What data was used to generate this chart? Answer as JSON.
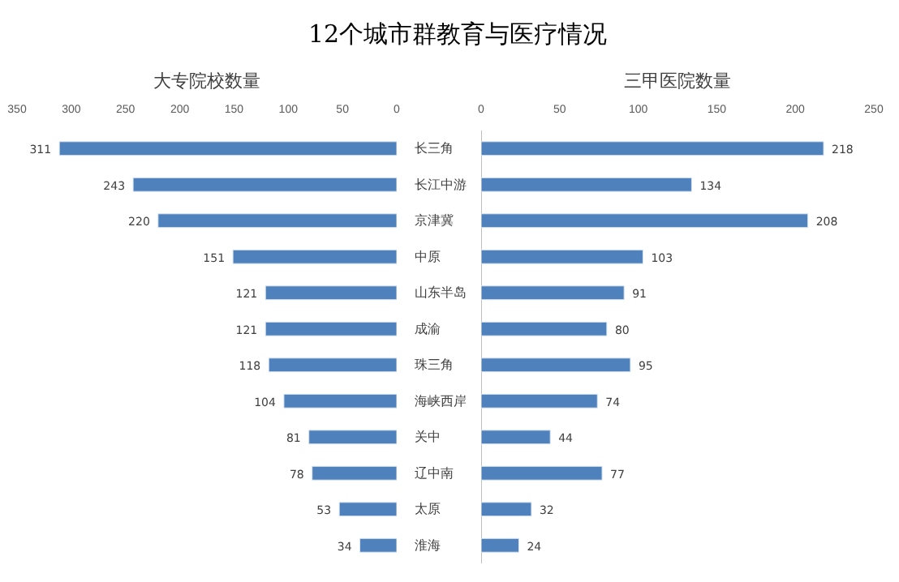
{
  "chart_data": [
    {
      "type": "bar",
      "orientation": "horizontal",
      "title": "12个城市群教育与医疗情况",
      "xlabel": "大专院校数量",
      "categories": [
        "长三角",
        "长江中游",
        "京津冀",
        "中原",
        "山东半岛",
        "成渝",
        "珠三角",
        "海峡西岸",
        "关中",
        "辽中南",
        "太原",
        "淮海"
      ],
      "series": [
        {
          "color": "#4f81bd",
          "values": [
            311,
            243,
            220,
            151,
            121,
            121,
            118,
            104,
            81,
            78,
            53,
            34
          ]
        }
      ],
      "xlim": [
        350,
        0
      ],
      "xticks": [
        350,
        300,
        250,
        200,
        150,
        100,
        50,
        0
      ],
      "data_labels": true,
      "grid": false
    },
    {
      "type": "bar",
      "orientation": "horizontal",
      "xlabel": "三甲医院数量",
      "series": [
        {
          "color": "#4f81bd",
          "values": [
            218,
            134,
            208,
            103,
            91,
            80,
            95,
            74,
            44,
            77,
            32,
            24
          ]
        }
      ],
      "xlim": [
        0,
        250
      ],
      "xticks": [
        0,
        50,
        100,
        150,
        200,
        250
      ],
      "data_labels": true,
      "grid": false,
      "tick_labels": "x"
    }
  ]
}
